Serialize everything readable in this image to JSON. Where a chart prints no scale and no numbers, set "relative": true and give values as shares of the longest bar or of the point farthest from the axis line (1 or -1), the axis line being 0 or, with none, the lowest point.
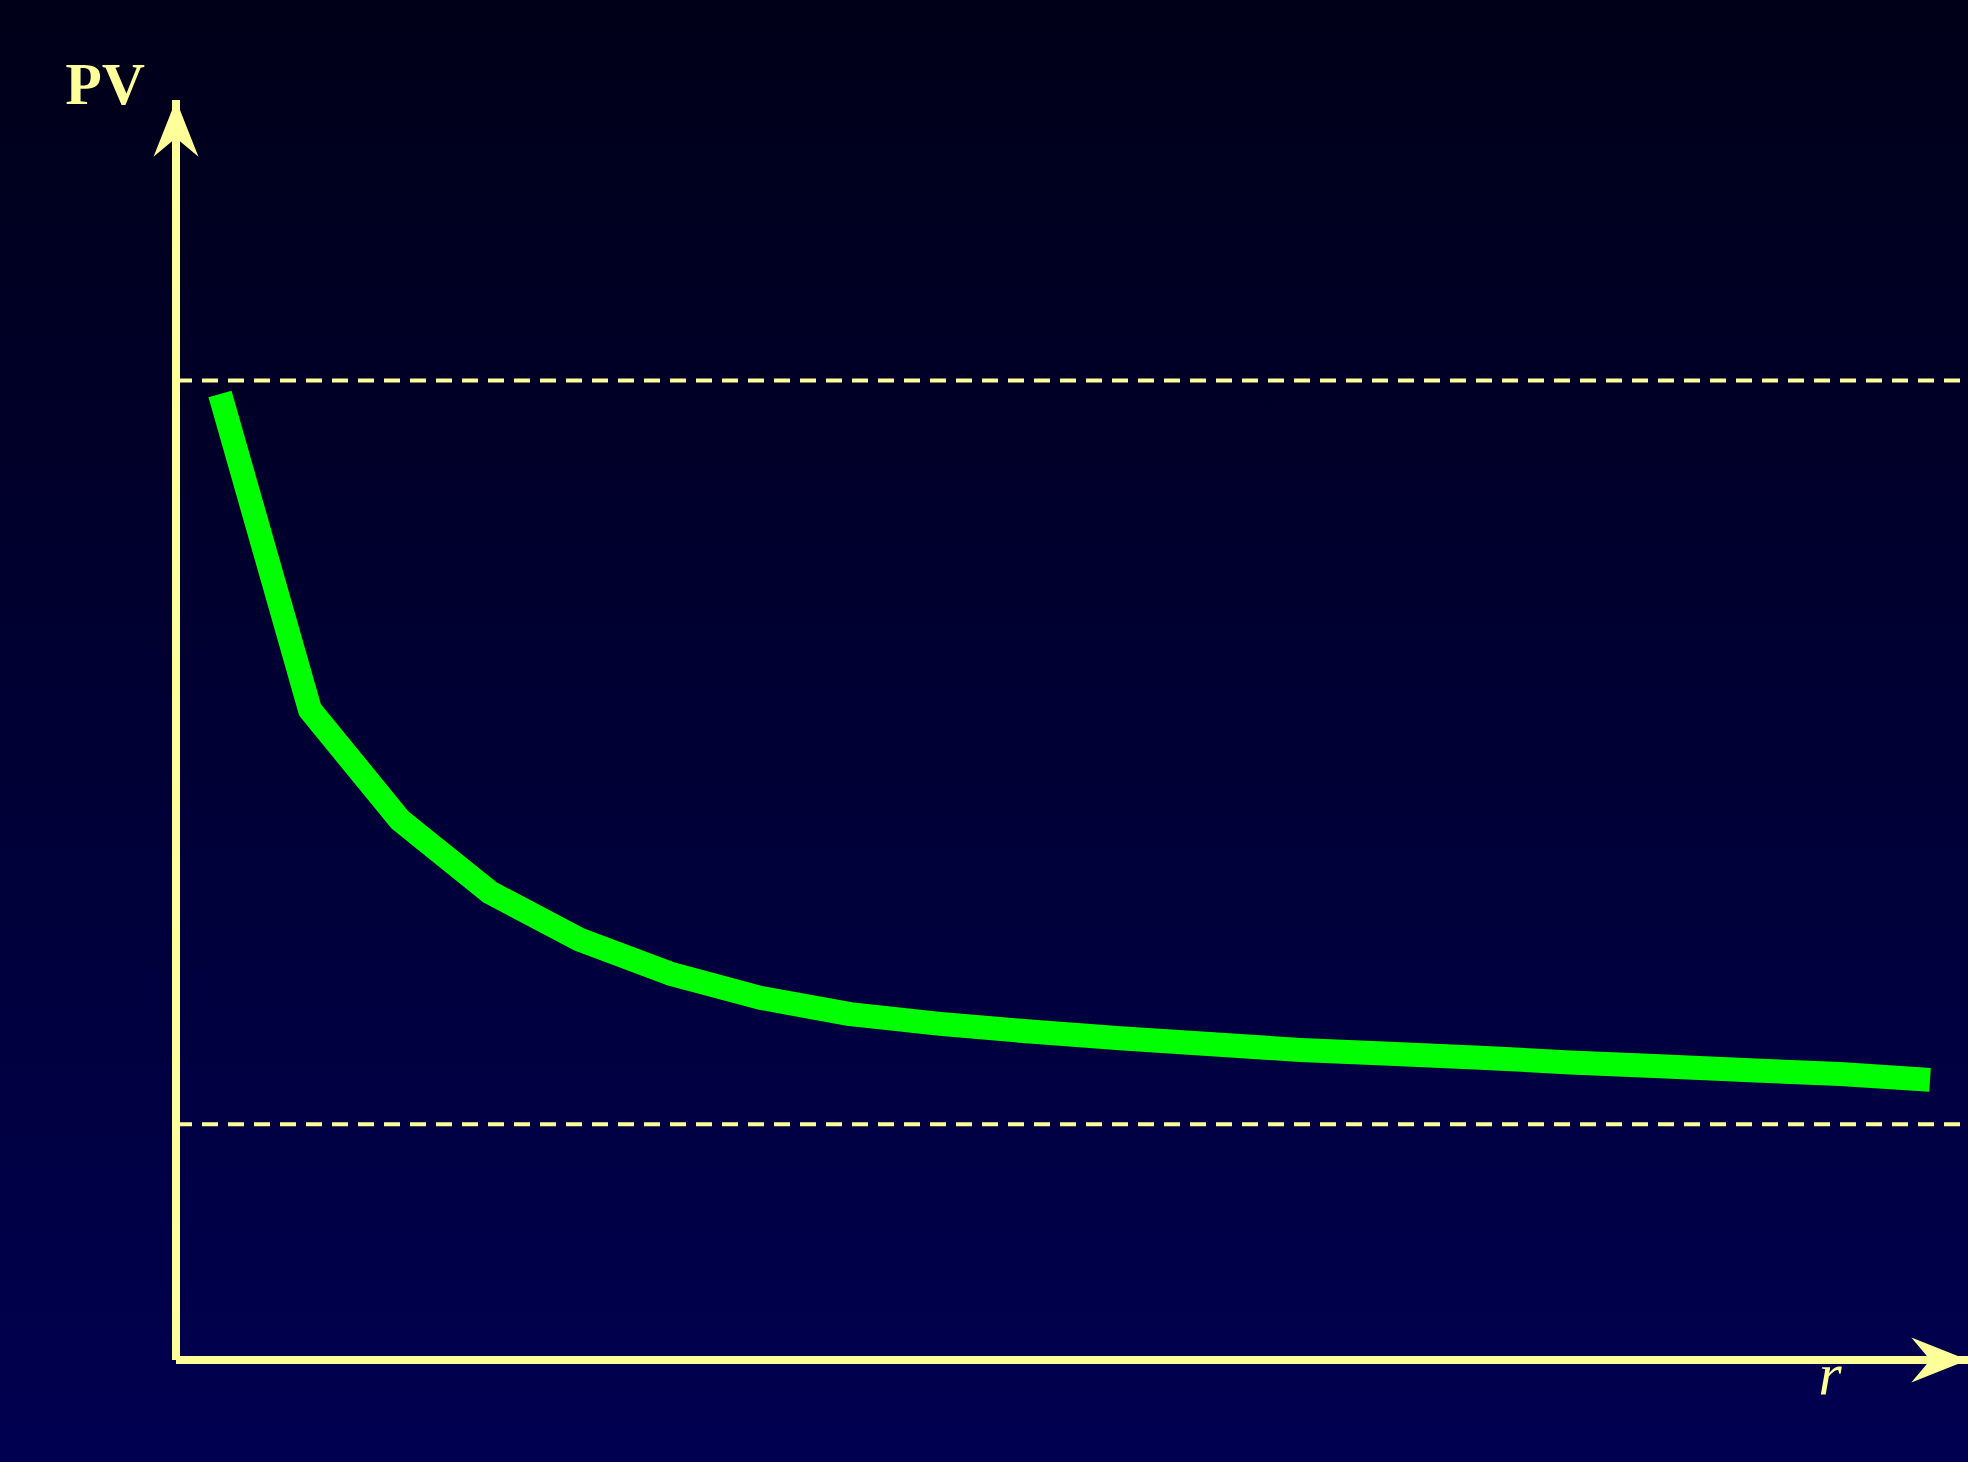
{
  "chart_data": {
    "type": "line",
    "relative": true,
    "xlabel": "r",
    "ylabel": "PV",
    "color": "#00ff00",
    "marker": "none",
    "line_style": "solid",
    "categories": [
      null,
      null,
      null,
      null,
      null,
      null,
      null,
      null,
      null,
      null,
      null,
      null,
      null,
      null,
      null,
      null,
      null,
      null,
      null,
      null
    ],
    "values": [
      1,
      0.673,
      0.559,
      0.484,
      0.435,
      0.4,
      0.375,
      0.358,
      0.348,
      0.34,
      0.333,
      0.327,
      0.321,
      0.317,
      0.313,
      0.308,
      0.304,
      0.3,
      0.296,
      0.29
    ],
    "ref_lines": [
      {
        "axis": "y",
        "value": 1.014,
        "color": "#ffff99",
        "line_style": "dashed"
      },
      {
        "axis": "y",
        "value": 0.244,
        "color": "#ffff99",
        "line_style": "dashed"
      }
    ]
  }
}
